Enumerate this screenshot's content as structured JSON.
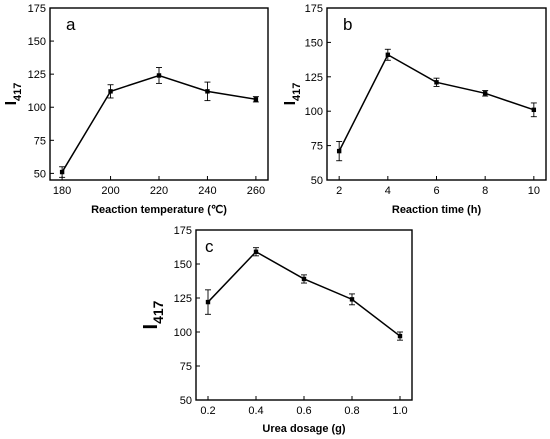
{
  "chart_data": [
    {
      "type": "line",
      "panel_label": "a",
      "ylabel_main": "I",
      "ylabel_sub": "417",
      "xlabel": "Reaction temperature (℃)",
      "x": [
        180,
        200,
        220,
        240,
        260
      ],
      "values": [
        51,
        112,
        124,
        112,
        106
      ],
      "errors": [
        4,
        5,
        6,
        7,
        2
      ],
      "xticks": [
        180,
        200,
        220,
        240,
        260
      ],
      "xlim": [
        175,
        265
      ],
      "yticks": [
        50,
        75,
        100,
        125,
        150,
        175
      ],
      "ylim": [
        45,
        175
      ]
    },
    {
      "type": "line",
      "panel_label": "b",
      "ylabel_main": "I",
      "ylabel_sub": "417",
      "xlabel": "Reaction time (h)",
      "x": [
        2,
        4,
        6,
        8,
        10
      ],
      "values": [
        71,
        141,
        121,
        113,
        101
      ],
      "errors": [
        7,
        4,
        3,
        2,
        5
      ],
      "xticks": [
        2,
        4,
        6,
        8,
        10
      ],
      "xlim": [
        1.5,
        10.5
      ],
      "yticks": [
        50,
        75,
        100,
        125,
        150,
        175
      ],
      "ylim": [
        50,
        175
      ]
    },
    {
      "type": "line",
      "panel_label": "c",
      "ylabel_main": "I",
      "ylabel_sub": "417",
      "xlabel": "Urea dosage (g)",
      "x": [
        0.2,
        0.4,
        0.6,
        0.8,
        1.0
      ],
      "values": [
        122,
        159,
        139,
        124,
        97
      ],
      "errors": [
        9,
        3,
        3,
        4,
        3
      ],
      "xticks": [
        0.2,
        0.4,
        0.6,
        0.8,
        1.0
      ],
      "xlim": [
        0.15,
        1.05
      ],
      "yticks": [
        50,
        75,
        100,
        125,
        150,
        175
      ],
      "ylim": [
        50,
        175
      ]
    }
  ]
}
